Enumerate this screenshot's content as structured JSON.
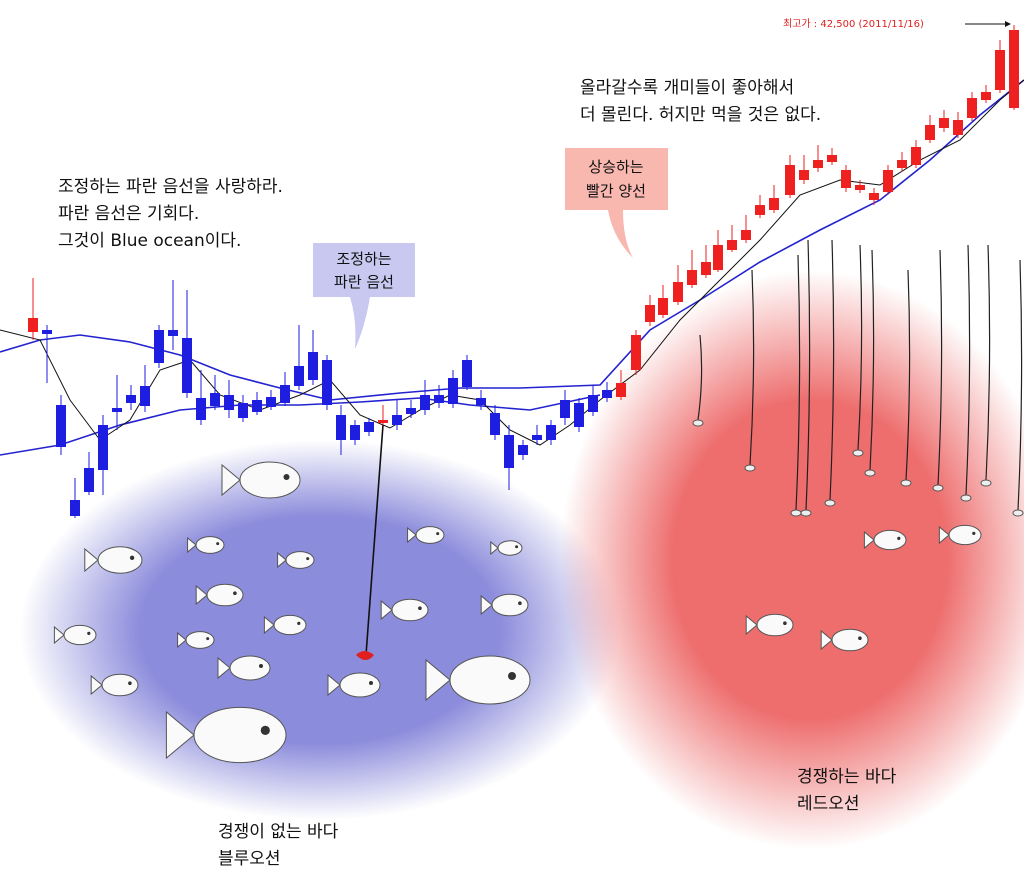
{
  "left_text": {
    "lines": [
      "조정하는 파란 음선을 사랑하라.",
      "파란 음선은 기회다.",
      "그것이 Blue ocean이다."
    ]
  },
  "right_text": {
    "lines": [
      "올라갈수록 개미들이 좋아해서",
      "더 몰린다. 허지만 먹을 것은 없다."
    ]
  },
  "blue_callout": {
    "lines": [
      "조정하는",
      "파란 음선"
    ]
  },
  "red_callout": {
    "lines": [
      "상승하는",
      "빨간 양선"
    ]
  },
  "peak_label": "최고가 : 42,500 (2011/11/16)",
  "blue_sea": {
    "lines": [
      "경쟁이 없는 바다",
      "블루오션"
    ]
  },
  "red_sea": {
    "lines": [
      "경쟁하는 바다",
      "레드오션"
    ]
  }
}
